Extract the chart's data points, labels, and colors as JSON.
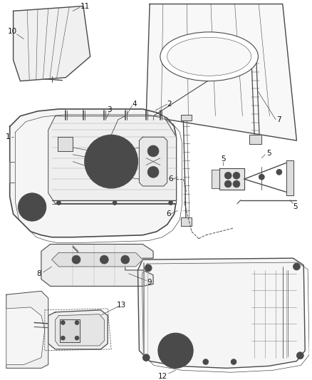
{
  "bg_color": "#ffffff",
  "lc": "#4a4a4a",
  "lc2": "#333333",
  "figsize": [
    4.38,
    5.33
  ],
  "dpi": 100,
  "label_fs": 7.5,
  "label_color": "#111111"
}
